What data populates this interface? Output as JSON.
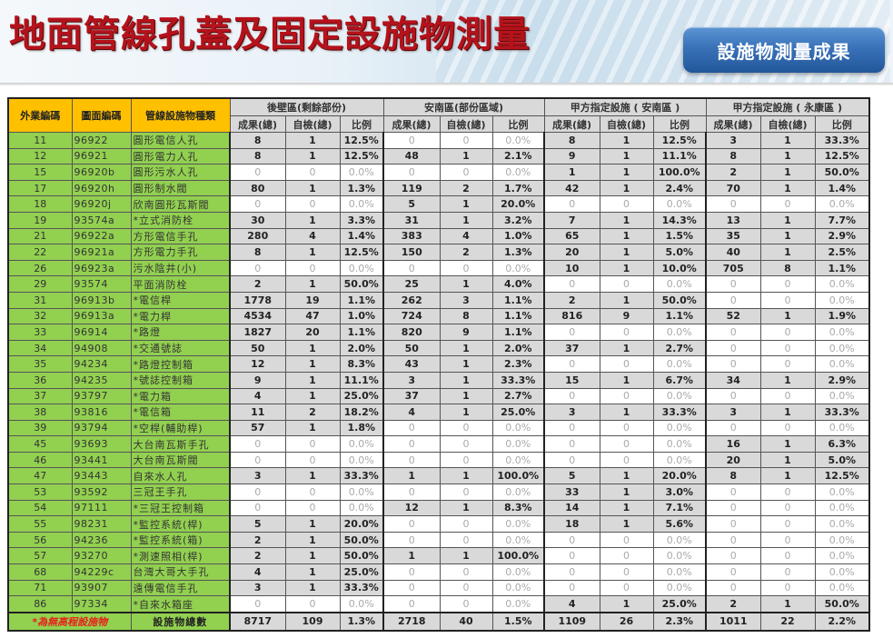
{
  "header": {
    "title": "地面管線孔蓋及固定設施物測量",
    "button_label": "設施物測量成果"
  },
  "colors": {
    "title_red": "#b5121b",
    "button_blue": "#3a72b8",
    "header_yellow": "#ffc000",
    "label_green": "#92d050",
    "value_gray": "#d9d9d9",
    "zero_text": "#aaaaaa",
    "note_red": "#e8201a"
  },
  "table": {
    "fixed_headers": [
      "外業編碼",
      "圖面編碼",
      "管線設施物種類"
    ],
    "groups": [
      "後壁區(剩餘部份)",
      "安南區(部份區域)",
      "甲方指定設施 ( 安南區 )",
      "甲方指定設施 ( 永康區 )"
    ],
    "sub_headers": [
      "成果(總)",
      "自檢(總)",
      "比例"
    ],
    "rows": [
      {
        "field": "11",
        "code": "96922",
        "type": "圓形電信人孔",
        "v": [
          "8",
          "1",
          "12.5%",
          "0",
          "0",
          "0.0%",
          "8",
          "1",
          "12.5%",
          "3",
          "1",
          "33.3%"
        ]
      },
      {
        "field": "12",
        "code": "96921",
        "type": "圓形電力人孔",
        "v": [
          "8",
          "1",
          "12.5%",
          "48",
          "1",
          "2.1%",
          "9",
          "1",
          "11.1%",
          "8",
          "1",
          "12.5%"
        ]
      },
      {
        "field": "15",
        "code": "96920b",
        "type": "圓形污水人孔",
        "v": [
          "0",
          "0",
          "0.0%",
          "0",
          "0",
          "0.0%",
          "1",
          "1",
          "100.0%",
          "2",
          "1",
          "50.0%"
        ]
      },
      {
        "field": "17",
        "code": "96920h",
        "type": "圓形制水閥",
        "v": [
          "80",
          "1",
          "1.3%",
          "119",
          "2",
          "1.7%",
          "42",
          "1",
          "2.4%",
          "70",
          "1",
          "1.4%"
        ]
      },
      {
        "field": "18",
        "code": "96920j",
        "type": "欣南圓形瓦斯閥",
        "v": [
          "0",
          "0",
          "0.0%",
          "5",
          "1",
          "20.0%",
          "0",
          "0",
          "0.0%",
          "0",
          "0",
          "0.0%"
        ]
      },
      {
        "field": "19",
        "code": "93574a",
        "type": "*立式消防栓",
        "v": [
          "30",
          "1",
          "3.3%",
          "31",
          "1",
          "3.2%",
          "7",
          "1",
          "14.3%",
          "13",
          "1",
          "7.7%"
        ]
      },
      {
        "field": "21",
        "code": "96922a",
        "type": "方形電信手孔",
        "v": [
          "280",
          "4",
          "1.4%",
          "383",
          "4",
          "1.0%",
          "65",
          "1",
          "1.5%",
          "35",
          "1",
          "2.9%"
        ]
      },
      {
        "field": "22",
        "code": "96921a",
        "type": "方形電力手孔",
        "v": [
          "8",
          "1",
          "12.5%",
          "150",
          "2",
          "1.3%",
          "20",
          "1",
          "5.0%",
          "40",
          "1",
          "2.5%"
        ]
      },
      {
        "field": "26",
        "code": "96923a",
        "type": "污水陰井(小)",
        "v": [
          "0",
          "0",
          "0.0%",
          "0",
          "0",
          "0.0%",
          "10",
          "1",
          "10.0%",
          "705",
          "8",
          "1.1%"
        ]
      },
      {
        "field": "29",
        "code": "93574",
        "type": "平面消防栓",
        "v": [
          "2",
          "1",
          "50.0%",
          "25",
          "1",
          "4.0%",
          "0",
          "0",
          "0.0%",
          "0",
          "0",
          "0.0%"
        ]
      },
      {
        "field": "31",
        "code": "96913b",
        "type": "*電信桿",
        "v": [
          "1778",
          "19",
          "1.1%",
          "262",
          "3",
          "1.1%",
          "2",
          "1",
          "50.0%",
          "0",
          "0",
          "0.0%"
        ]
      },
      {
        "field": "32",
        "code": "96913a",
        "type": "*電力桿",
        "v": [
          "4534",
          "47",
          "1.0%",
          "724",
          "8",
          "1.1%",
          "816",
          "9",
          "1.1%",
          "52",
          "1",
          "1.9%"
        ]
      },
      {
        "field": "33",
        "code": "96914",
        "type": "*路燈",
        "v": [
          "1827",
          "20",
          "1.1%",
          "820",
          "9",
          "1.1%",
          "0",
          "0",
          "0.0%",
          "0",
          "0",
          "0.0%"
        ]
      },
      {
        "field": "34",
        "code": "94908",
        "type": "*交通號誌",
        "v": [
          "50",
          "1",
          "2.0%",
          "50",
          "1",
          "2.0%",
          "37",
          "1",
          "2.7%",
          "0",
          "0",
          "0.0%"
        ]
      },
      {
        "field": "35",
        "code": "94234",
        "type": "*路燈控制箱",
        "v": [
          "12",
          "1",
          "8.3%",
          "43",
          "1",
          "2.3%",
          "0",
          "0",
          "0.0%",
          "0",
          "0",
          "0.0%"
        ]
      },
      {
        "field": "36",
        "code": "94235",
        "type": "*號誌控制箱",
        "v": [
          "9",
          "1",
          "11.1%",
          "3",
          "1",
          "33.3%",
          "15",
          "1",
          "6.7%",
          "34",
          "1",
          "2.9%"
        ]
      },
      {
        "field": "37",
        "code": "93797",
        "type": "*電力箱",
        "v": [
          "4",
          "1",
          "25.0%",
          "37",
          "1",
          "2.7%",
          "0",
          "0",
          "0.0%",
          "0",
          "0",
          "0.0%"
        ]
      },
      {
        "field": "38",
        "code": "93816",
        "type": "*電信箱",
        "v": [
          "11",
          "2",
          "18.2%",
          "4",
          "1",
          "25.0%",
          "3",
          "1",
          "33.3%",
          "3",
          "1",
          "33.3%"
        ]
      },
      {
        "field": "39",
        "code": "93794",
        "type": "*空桿(輔助桿)",
        "v": [
          "57",
          "1",
          "1.8%",
          "0",
          "0",
          "0.0%",
          "0",
          "0",
          "0.0%",
          "0",
          "0",
          "0.0%"
        ]
      },
      {
        "field": "45",
        "code": "93693",
        "type": "大台南瓦斯手孔",
        "v": [
          "0",
          "0",
          "0.0%",
          "0",
          "0",
          "0.0%",
          "0",
          "0",
          "0.0%",
          "16",
          "1",
          "6.3%"
        ]
      },
      {
        "field": "46",
        "code": "93441",
        "type": "大台南瓦斯閥",
        "v": [
          "0",
          "0",
          "0.0%",
          "0",
          "0",
          "0.0%",
          "0",
          "0",
          "0.0%",
          "20",
          "1",
          "5.0%"
        ]
      },
      {
        "field": "47",
        "code": "93443",
        "type": "自來水人孔",
        "v": [
          "3",
          "1",
          "33.3%",
          "1",
          "1",
          "100.0%",
          "5",
          "1",
          "20.0%",
          "8",
          "1",
          "12.5%"
        ]
      },
      {
        "field": "53",
        "code": "93592",
        "type": "三冠王手孔",
        "v": [
          "0",
          "0",
          "0.0%",
          "0",
          "0",
          "0.0%",
          "33",
          "1",
          "3.0%",
          "0",
          "0",
          "0.0%"
        ]
      },
      {
        "field": "54",
        "code": "97111",
        "type": "*三冠王控制箱",
        "v": [
          "0",
          "0",
          "0.0%",
          "12",
          "1",
          "8.3%",
          "14",
          "1",
          "7.1%",
          "0",
          "0",
          "0.0%"
        ]
      },
      {
        "field": "55",
        "code": "98231",
        "type": "*監控系統(桿)",
        "v": [
          "5",
          "1",
          "20.0%",
          "0",
          "0",
          "0.0%",
          "18",
          "1",
          "5.6%",
          "0",
          "0",
          "0.0%"
        ]
      },
      {
        "field": "56",
        "code": "94236",
        "type": "*監控系統(箱)",
        "v": [
          "2",
          "1",
          "50.0%",
          "0",
          "0",
          "0.0%",
          "0",
          "0",
          "0.0%",
          "0",
          "0",
          "0.0%"
        ]
      },
      {
        "field": "57",
        "code": "93270",
        "type": "*測速照相(桿)",
        "v": [
          "2",
          "1",
          "50.0%",
          "1",
          "1",
          "100.0%",
          "0",
          "0",
          "0.0%",
          "0",
          "0",
          "0.0%"
        ]
      },
      {
        "field": "68",
        "code": "94229c",
        "type": "台灣大哥大手孔",
        "v": [
          "4",
          "1",
          "25.0%",
          "0",
          "0",
          "0.0%",
          "0",
          "0",
          "0.0%",
          "0",
          "0",
          "0.0%"
        ]
      },
      {
        "field": "71",
        "code": "93907",
        "type": "遠傳電信手孔",
        "v": [
          "3",
          "1",
          "33.3%",
          "0",
          "0",
          "0.0%",
          "0",
          "0",
          "0.0%",
          "0",
          "0",
          "0.0%"
        ]
      },
      {
        "field": "86",
        "code": "97334",
        "type": "*自來水箱座",
        "v": [
          "0",
          "0",
          "0.0%",
          "0",
          "0",
          "0.0%",
          "4",
          "1",
          "25.0%",
          "2",
          "1",
          "50.0%"
        ]
      }
    ],
    "footer": {
      "note": "*為無高程設施物",
      "total_label": "設施物總數",
      "v": [
        "8717",
        "109",
        "1.3%",
        "2718",
        "40",
        "1.5%",
        "1109",
        "26",
        "2.3%",
        "1011",
        "22",
        "2.2%"
      ]
    }
  }
}
